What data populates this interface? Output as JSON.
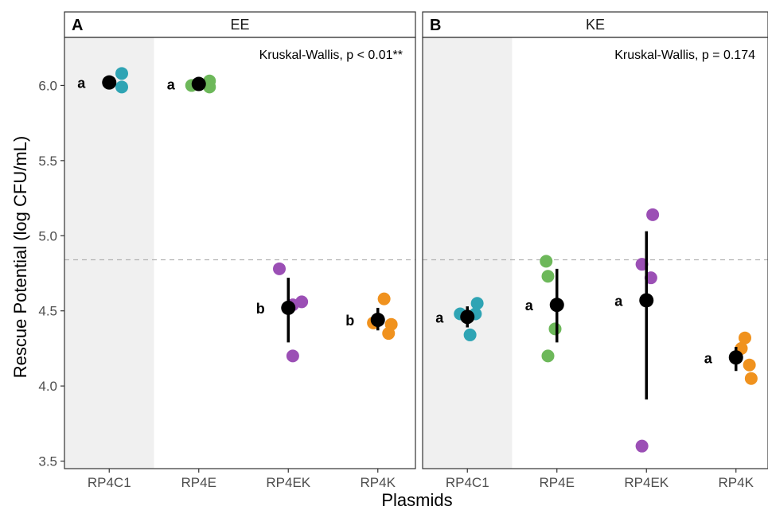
{
  "chart_data": {
    "type": "scatter",
    "xlabel": "Plasmids",
    "ylabel": "Rescue Potential (log CFU/mL)",
    "ylim": [
      3.45,
      6.32
    ],
    "yticks": [
      3.5,
      4.0,
      4.5,
      5.0,
      5.5,
      6.0
    ],
    "ytick_labels": [
      "3.5",
      "4.0",
      "4.5",
      "5.0",
      "5.5",
      "6.0"
    ],
    "reference_line": 4.84,
    "categories": [
      "RP4C1",
      "RP4E",
      "RP4EK",
      "RP4K"
    ],
    "category_colors": {
      "RP4C1": "#2fa4b4",
      "RP4E": "#6db85a",
      "RP4EK": "#9b4fb5",
      "RP4K": "#f0921e"
    },
    "mean_color": "#000000",
    "shaded_category": "RP4C1",
    "shade_color": "#f0f0f0",
    "panels": [
      {
        "tag": "A",
        "strip": "EE",
        "stat_text": "Kruskal-Wallis, p < 0.01**",
        "groups": [
          {
            "category": "RP4C1",
            "letter": "a",
            "mean": 6.02,
            "err": [
              6.02,
              6.02
            ],
            "points": [
              [
                0.14,
                6.08
              ],
              [
                0.14,
                5.99
              ]
            ]
          },
          {
            "category": "RP4E",
            "letter": "a",
            "mean": 6.01,
            "err": [
              6.01,
              6.01
            ],
            "points": [
              [
                -0.08,
                6.0
              ],
              [
                0.12,
                6.03
              ],
              [
                0.12,
                5.99
              ]
            ]
          },
          {
            "category": "RP4EK",
            "letter": "b",
            "mean": 4.52,
            "err": [
              4.29,
              4.72
            ],
            "points": [
              [
                -0.1,
                4.78
              ],
              [
                0.15,
                4.56
              ],
              [
                0.05,
                4.54
              ],
              [
                0.05,
                4.2
              ]
            ]
          },
          {
            "category": "RP4K",
            "letter": "b",
            "mean": 4.44,
            "err": [
              4.37,
              4.52
            ],
            "points": [
              [
                0.07,
                4.58
              ],
              [
                -0.05,
                4.42
              ],
              [
                0.15,
                4.41
              ],
              [
                0.12,
                4.35
              ]
            ]
          }
        ]
      },
      {
        "tag": "B",
        "strip": "KE",
        "stat_text": "Kruskal-Wallis, p = 0.174",
        "groups": [
          {
            "category": "RP4C1",
            "letter": "a",
            "mean": 4.46,
            "err": [
              4.39,
              4.53
            ],
            "points": [
              [
                -0.08,
                4.48
              ],
              [
                0.11,
                4.55
              ],
              [
                0.09,
                4.48
              ],
              [
                0.03,
                4.34
              ]
            ]
          },
          {
            "category": "RP4E",
            "letter": "a",
            "mean": 4.54,
            "err": [
              4.29,
              4.78
            ],
            "points": [
              [
                -0.12,
                4.83
              ],
              [
                -0.1,
                4.73
              ],
              [
                -0.02,
                4.38
              ],
              [
                -0.1,
                4.2
              ]
            ]
          },
          {
            "category": "RP4EK",
            "letter": "a",
            "mean": 4.57,
            "err": [
              3.91,
              5.03
            ],
            "points": [
              [
                0.07,
                5.14
              ],
              [
                -0.05,
                4.81
              ],
              [
                0.05,
                4.72
              ],
              [
                -0.05,
                3.6
              ]
            ]
          },
          {
            "category": "RP4K",
            "letter": "a",
            "mean": 4.19,
            "err": [
              4.1,
              4.26
            ],
            "points": [
              [
                0.1,
                4.32
              ],
              [
                0.06,
                4.25
              ],
              [
                0.15,
                4.14
              ],
              [
                0.17,
                4.05
              ]
            ]
          }
        ]
      }
    ]
  }
}
